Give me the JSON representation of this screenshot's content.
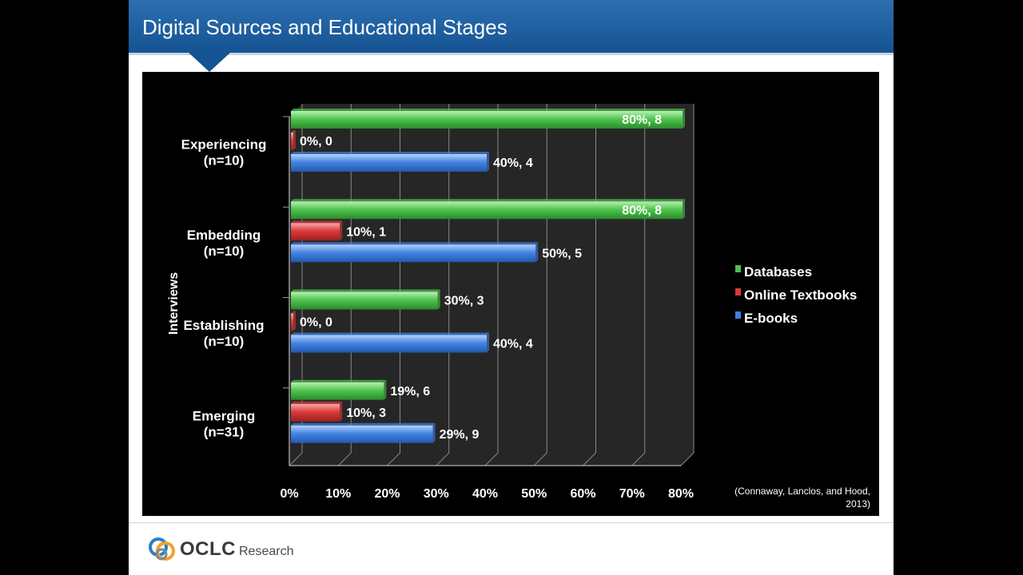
{
  "slide": {
    "title": "Digital Sources and Educational Stages",
    "source_note": "(Connaway, Lanclos, and Hood, 2013)",
    "logo": {
      "name": "OCLC",
      "sub": "Research"
    }
  },
  "chart_data": {
    "type": "bar",
    "orientation": "horizontal",
    "ylabel": "Interviews",
    "xlim": [
      0,
      80
    ],
    "x_tick_labels": [
      "0%",
      "10%",
      "20%",
      "30%",
      "40%",
      "50%",
      "60%",
      "70%",
      "80%"
    ],
    "categories": [
      [
        "Experiencing",
        "(n=10)"
      ],
      [
        "Embedding",
        "(n=10)"
      ],
      [
        "Establishing",
        "(n=10)"
      ],
      [
        "Emerging",
        "(n=31)"
      ]
    ],
    "series": [
      {
        "name": "Databases",
        "color": "#4fbf4f",
        "values": [
          80,
          80,
          30,
          19
        ],
        "labels": [
          "80%, 8",
          "80%, 8",
          "30%, 3",
          "19%, 6"
        ]
      },
      {
        "name": "Online Textbooks",
        "color": "#d63a3a",
        "values": [
          0,
          10,
          0,
          10
        ],
        "labels": [
          "0%, 0",
          "10%, 1",
          "0%, 0",
          "10%, 3"
        ]
      },
      {
        "name": "E-books",
        "color": "#3f7fe0",
        "values": [
          40,
          50,
          40,
          29
        ],
        "labels": [
          "40%, 4",
          "50%, 5",
          "40%, 4",
          "29%, 9"
        ]
      }
    ],
    "legend_position": "right",
    "grid": true
  }
}
